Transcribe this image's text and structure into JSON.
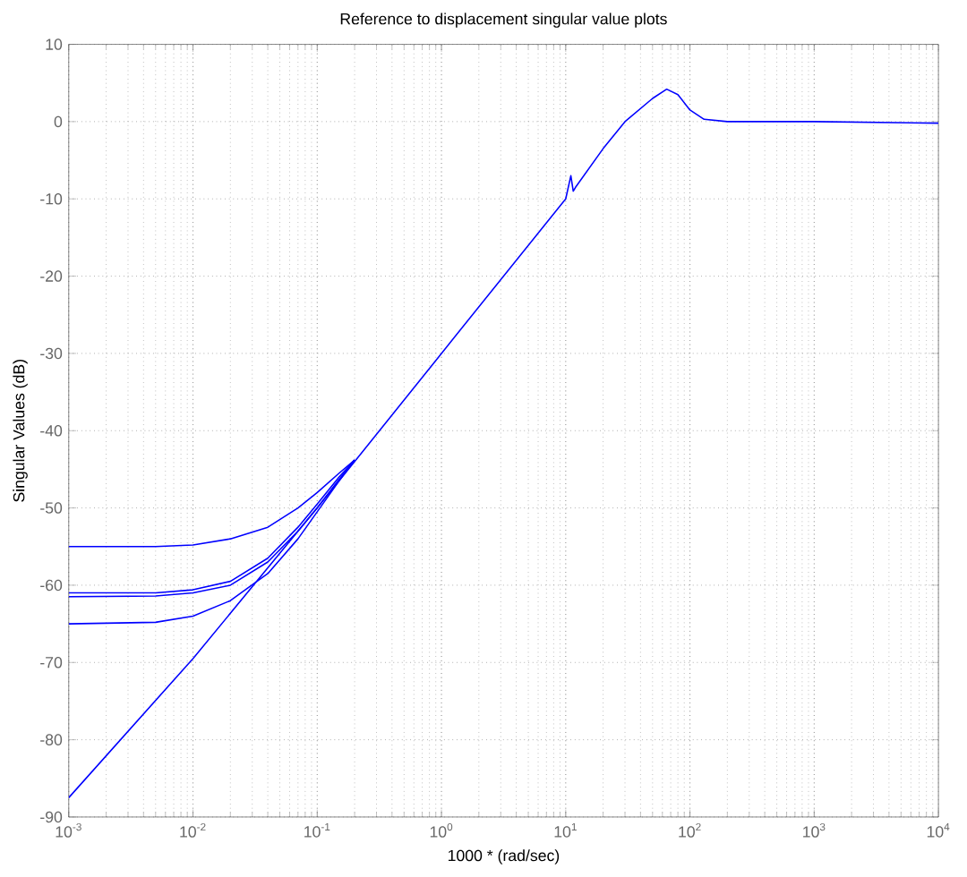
{
  "chart_data": {
    "type": "line",
    "title": "Reference to displacement singular value plots",
    "xlabel": "1000 * (rad/sec)",
    "ylabel": "Singular Values (dB)",
    "log": "x",
    "grid": true,
    "xlim": [
      0.001,
      10000
    ],
    "ylim": [
      -90,
      10
    ],
    "xticks": [
      {
        "value": 0.001,
        "label": "10$^{-3}$"
      },
      {
        "value": 0.01,
        "label": "10$^{-2}$"
      },
      {
        "value": 0.1,
        "label": "10$^{-1}$"
      },
      {
        "value": 1,
        "label": "10$^{0}$"
      },
      {
        "value": 10,
        "label": "10$^{1}$"
      },
      {
        "value": 100,
        "label": "10$^{2}$"
      },
      {
        "value": 1000,
        "label": "10$^{3}$"
      },
      {
        "value": 10000,
        "label": "10$^{4}$"
      }
    ],
    "yticks": [
      -90,
      -80,
      -70,
      -60,
      -50,
      -40,
      -30,
      -20,
      -10,
      0,
      10
    ],
    "series": [
      {
        "color": "#0000ff",
        "x": [
          0.001,
          0.005,
          0.01,
          0.02,
          0.04,
          0.07,
          0.1,
          0.15,
          0.2
        ],
        "values": [
          -55,
          -55,
          -54.8,
          -54,
          -52.5,
          -50,
          -48,
          -45.5,
          -43.8
        ]
      },
      {
        "color": "#0000ff",
        "x": [
          0.001,
          0.005,
          0.01,
          0.02,
          0.04,
          0.07,
          0.1,
          0.15,
          0.2
        ],
        "values": [
          -61,
          -61,
          -60.6,
          -59.5,
          -56.5,
          -52.5,
          -49.5,
          -46,
          -43.8
        ]
      },
      {
        "color": "#0000ff",
        "x": [
          0.001,
          0.005,
          0.01,
          0.02,
          0.04,
          0.07,
          0.1,
          0.15,
          0.2
        ],
        "values": [
          -61.5,
          -61.4,
          -61,
          -60,
          -57,
          -53,
          -50,
          -46.3,
          -43.8
        ]
      },
      {
        "color": "#0000ff",
        "x": [
          0.001,
          0.005,
          0.01,
          0.02,
          0.04,
          0.07,
          0.1,
          0.15,
          0.2
        ],
        "values": [
          -65,
          -64.8,
          -64,
          -62,
          -58.5,
          -54,
          -50.5,
          -46.5,
          -43.8
        ]
      },
      {
        "color": "#0000ff",
        "x": [
          0.001,
          0.01,
          0.1,
          0.2,
          1,
          10,
          11,
          11.5,
          12,
          20,
          30,
          50,
          65,
          80,
          100,
          130,
          200,
          1000,
          10000
        ],
        "values": [
          -87.5,
          -69.5,
          -50,
          -44,
          -30,
          -10,
          -7,
          -9,
          -8.5,
          -3.5,
          0,
          3,
          4.2,
          3.5,
          1.5,
          0.3,
          0,
          0,
          -0.2
        ]
      }
    ]
  }
}
